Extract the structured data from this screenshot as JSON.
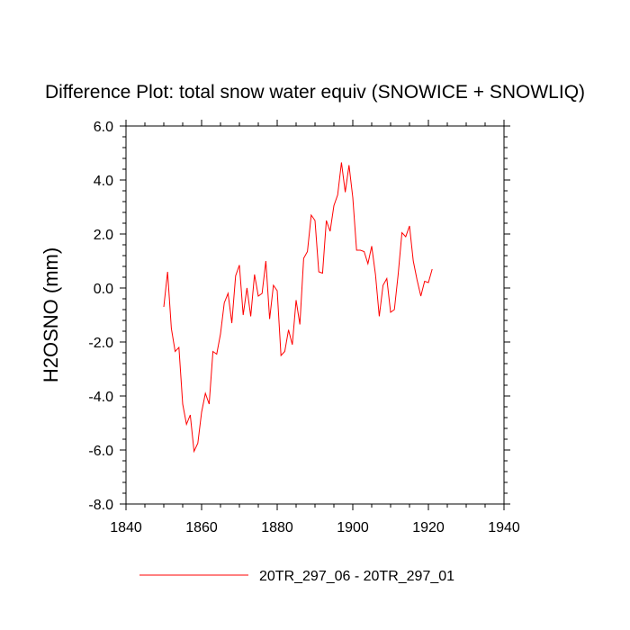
{
  "chart_data": {
    "type": "line",
    "title": "Difference Plot: total snow water equiv (SNOWICE + SNOWLIQ)",
    "xlabel": "",
    "ylabel": "H2OSNO  (mm)",
    "xlim": [
      1840,
      1940
    ],
    "ylim": [
      -8.0,
      6.0
    ],
    "xticks": [
      1840,
      1860,
      1880,
      1900,
      1920,
      1940
    ],
    "xtick_labels": [
      "1840",
      "1860",
      "1880",
      "1900",
      "1920",
      "1940"
    ],
    "yticks": [
      -8.0,
      -6.0,
      -4.0,
      -2.0,
      0.0,
      2.0,
      4.0,
      6.0
    ],
    "ytick_labels": [
      "-8.0",
      "-6.0",
      "-4.0",
      "-2.0",
      "0.0",
      "2.0",
      "4.0",
      "6.0"
    ],
    "grid": false,
    "legend_position": "bottom-center",
    "series": [
      {
        "name": "20TR_297_06 - 20TR_297_01",
        "color": "#ff0000",
        "x": [
          1850,
          1851,
          1852,
          1853,
          1854,
          1855,
          1856,
          1857,
          1858,
          1859,
          1860,
          1861,
          1862,
          1863,
          1864,
          1865,
          1866,
          1867,
          1868,
          1869,
          1870,
          1871,
          1872,
          1873,
          1874,
          1875,
          1876,
          1877,
          1878,
          1879,
          1880,
          1881,
          1882,
          1883,
          1884,
          1885,
          1886,
          1887,
          1888,
          1889,
          1890,
          1891,
          1892,
          1893,
          1894,
          1895,
          1896,
          1897,
          1898,
          1899,
          1900,
          1901,
          1902,
          1903,
          1904,
          1905,
          1906,
          1907,
          1908,
          1909,
          1910,
          1911,
          1912,
          1913,
          1914,
          1915,
          1916,
          1917,
          1918,
          1919,
          1920,
          1921
        ],
        "values": [
          -0.7,
          0.6,
          -1.5,
          -2.35,
          -2.2,
          -4.3,
          -5.05,
          -4.7,
          -6.05,
          -5.75,
          -4.6,
          -3.9,
          -4.3,
          -2.35,
          -2.45,
          -1.7,
          -0.55,
          -0.2,
          -1.3,
          0.45,
          0.85,
          -1.0,
          0.0,
          -1.05,
          0.5,
          -0.3,
          -0.2,
          1.0,
          -1.15,
          0.1,
          -0.1,
          -2.5,
          -2.35,
          -1.55,
          -2.1,
          -0.45,
          -1.35,
          1.1,
          1.35,
          2.7,
          2.5,
          0.6,
          0.55,
          2.5,
          2.1,
          3.05,
          3.45,
          4.65,
          3.55,
          4.55,
          3.35,
          1.4,
          1.4,
          1.35,
          0.9,
          1.55,
          0.5,
          -1.05,
          0.1,
          0.35,
          -0.9,
          -0.8,
          0.5,
          2.05,
          1.9,
          2.3,
          1.0,
          0.3,
          -0.3,
          0.25,
          0.2,
          0.7
        ]
      }
    ]
  }
}
